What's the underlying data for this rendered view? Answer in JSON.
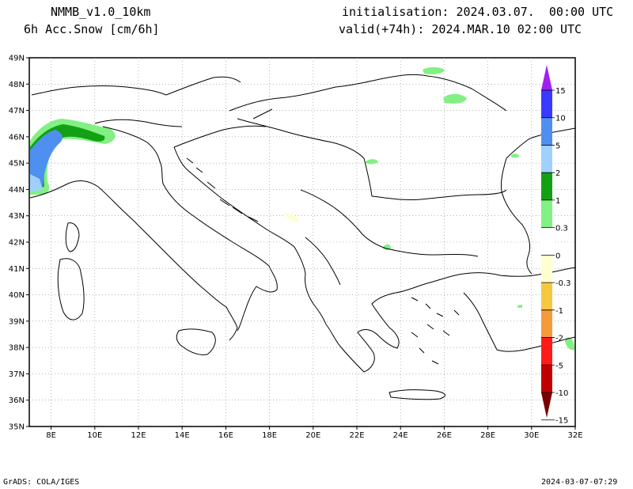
{
  "header": {
    "model": "NMMB_v1.0_10km",
    "field": "6h Acc.Snow [cm/6h]",
    "init": "initialisation: 2024.03.07.  00:00 UTC",
    "valid": "valid(+74h): 2024.MAR.10 02:00 UTC"
  },
  "map": {
    "lat_labels": [
      "49N",
      "48N",
      "47N",
      "46N",
      "45N",
      "44N",
      "43N",
      "42N",
      "41N",
      "40N",
      "39N",
      "38N",
      "37N",
      "36N",
      "35N"
    ],
    "lon_labels": [
      "8E",
      "10E",
      "12E",
      "14E",
      "16E",
      "18E",
      "20E",
      "22E",
      "24E",
      "26E",
      "28E",
      "30E",
      "32E"
    ],
    "lon_range": [
      7,
      32
    ],
    "lat_range": [
      35,
      49
    ],
    "grid": "dotted"
  },
  "legend": {
    "labels": [
      "15",
      "10",
      "5",
      "2",
      "1",
      "0.3",
      "0",
      "-0.3",
      "-1",
      "-2",
      "-5",
      "-10",
      "-15"
    ],
    "colors": [
      "#a020f0",
      "#3a3aff",
      "#4f8ff0",
      "#a0d0ff",
      "#14a014",
      "#82f082",
      "#ffffff",
      "#ffffd0",
      "#f5c842",
      "#f59a3a",
      "#ff1a1a",
      "#c00000",
      "#7a0000"
    ]
  },
  "footer": {
    "left": "GrADS: COLA/IGES",
    "right": "2024-03-07-07:29"
  }
}
